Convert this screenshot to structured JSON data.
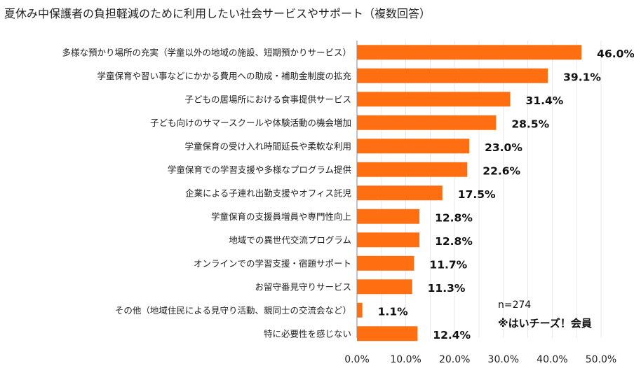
{
  "chart_data": {
    "type": "bar",
    "orientation": "horizontal",
    "title": "夏休み中保護者の負担軽減のために利用したい社会サービスやサポート（複数回答）",
    "categories": [
      "多様な預かり場所の充実（学童以外の地域の施設、短期預かりサービス）",
      "学童保育や習い事などにかかる費用への助成・補助金制度の拡充",
      "子どもの居場所における食事提供サービス",
      "子ども向けのサマースクールや体験活動の機会増加",
      "学童保育の受け入れ時間延長や柔軟な利用",
      "学童保育での学習支援や多様なプログラム提供",
      "企業による子連れ出勤支援やオフィス託児",
      "学童保育の支援員増員や専門性向上",
      "地域での異世代交流プログラム",
      "オンラインでの学習支援・宿題サポート",
      "お留守番見守りサービス",
      "その他（地域住民による見守り活動、親同士の交流会など）",
      "特に必要性を感じない"
    ],
    "values": [
      46.0,
      39.1,
      31.4,
      28.5,
      23.0,
      22.6,
      17.5,
      12.8,
      12.8,
      11.7,
      11.3,
      1.1,
      12.4
    ],
    "value_labels": [
      "46.0%",
      "39.1%",
      "31.4%",
      "28.5%",
      "23.0%",
      "22.6%",
      "17.5%",
      "12.8%",
      "12.8%",
      "11.7%",
      "11.3%",
      "1.1%",
      "12.4%"
    ],
    "xlim": [
      0,
      50
    ],
    "xticks": [
      0,
      10,
      20,
      30,
      40,
      50
    ],
    "xtick_labels": [
      "0.0%",
      "10.0%",
      "20.0%",
      "30.0%",
      "40.0%",
      "50.0%"
    ],
    "grid": true,
    "bar_color": "#FF6F12",
    "notes": [
      "n=274",
      "※はいチーズ！会員"
    ]
  }
}
